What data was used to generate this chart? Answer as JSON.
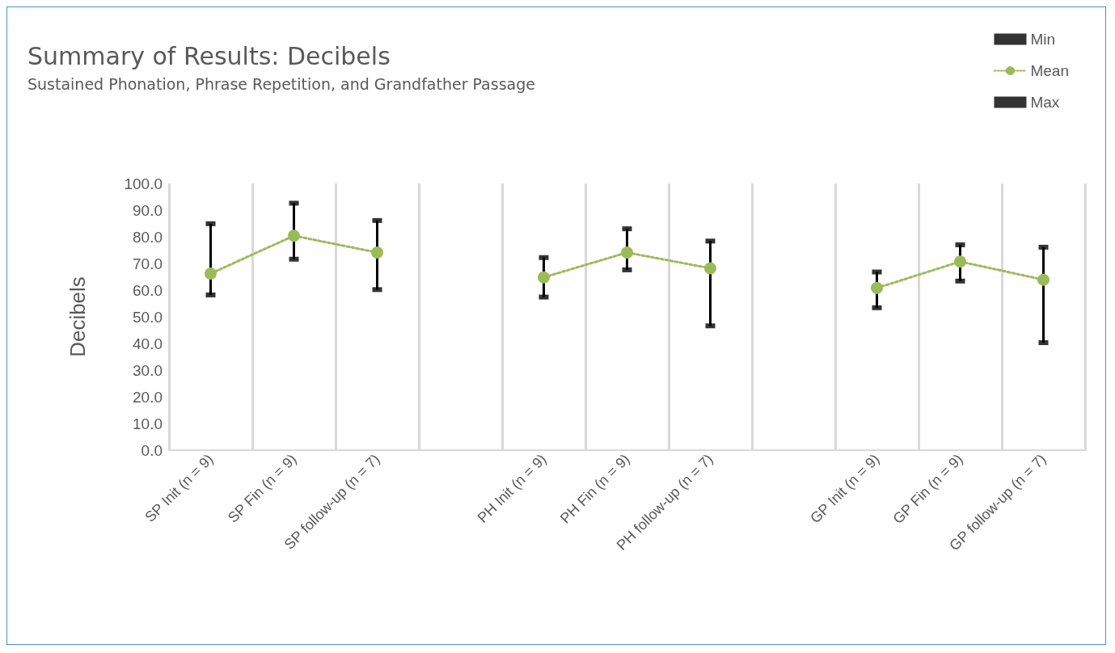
{
  "chart_data": {
    "type": "line",
    "title": "Summary of Results: Decibels",
    "subtitle": "Sustained Phonation, Phrase Repetition, and Grandfather Passage",
    "ylabel": "Decibels",
    "categories": [
      "SP Init (n = 9)",
      "SP Fin (n = 9)",
      "SP follow-up (n = 7)",
      null,
      "PH Init (n = 9)",
      "PH Fin (n = 9)",
      "PH follow-up (n = 7)",
      null,
      "GP Init (n = 9)",
      "GP Fin (n = 9)",
      "GP follow-up (n = 7)"
    ],
    "series": [
      {
        "name": "Min",
        "type": "scatter",
        "color": "#000000",
        "values": [
          58.2,
          71.6,
          60.2,
          null,
          57.4,
          67.6,
          46.6,
          null,
          53.4,
          63.4,
          40.3
        ]
      },
      {
        "name": "Mean",
        "type": "line",
        "color": "#9bbb59",
        "marker": "circle",
        "line_style": "dotted",
        "values": [
          66.2,
          80.4,
          74.1,
          null,
          64.8,
          74.1,
          68.2,
          null,
          60.8,
          70.7,
          63.9
        ]
      },
      {
        "name": "Max",
        "type": "scatter",
        "color": "#000000",
        "values": [
          84.9,
          92.6,
          86.1,
          null,
          72.2,
          83.0,
          78.4,
          null,
          66.8,
          77.0,
          76.1
        ]
      }
    ],
    "ylim": [
      0,
      100
    ],
    "yticks": [
      {
        "value": 0,
        "label": "0.0"
      },
      {
        "value": 10,
        "label": "10.0"
      },
      {
        "value": 20,
        "label": "20.0"
      },
      {
        "value": 30,
        "label": "30.0"
      },
      {
        "value": 40,
        "label": "40.0"
      },
      {
        "value": 50,
        "label": "50.0"
      },
      {
        "value": 60,
        "label": "60.0"
      },
      {
        "value": 70,
        "label": "70.0"
      },
      {
        "value": 80,
        "label": "80.0"
      },
      {
        "value": 90,
        "label": "90.0"
      },
      {
        "value": 100,
        "label": "100.0"
      }
    ],
    "grid": "x",
    "legend": "top right"
  }
}
